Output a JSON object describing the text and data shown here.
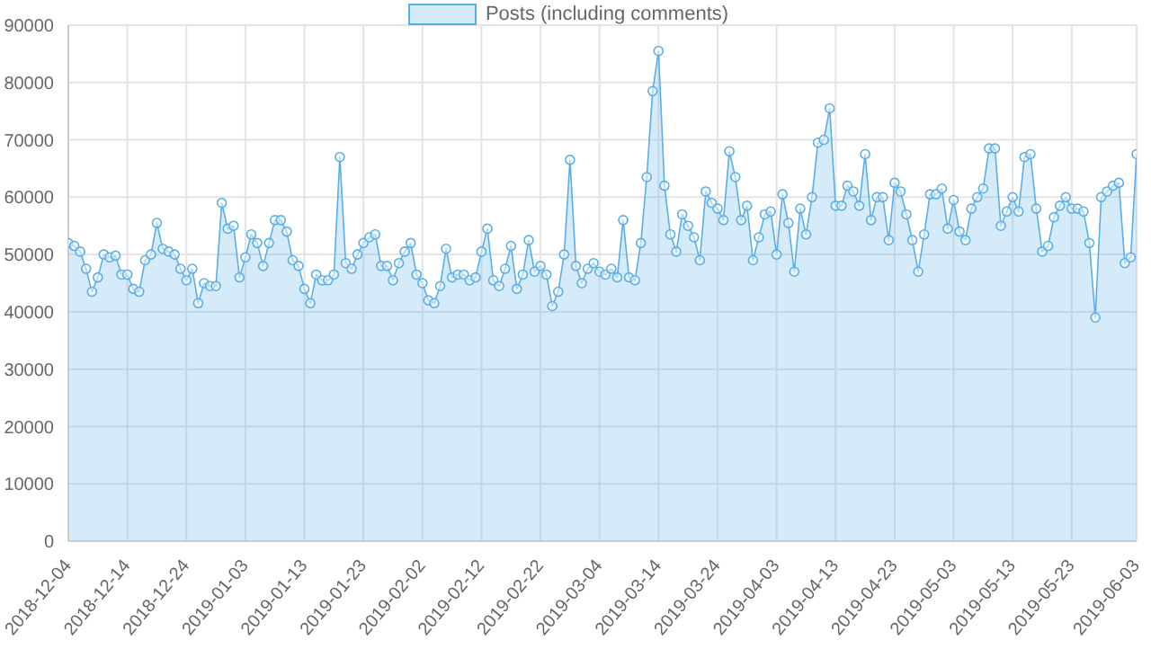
{
  "chart_data": {
    "type": "area",
    "x": [
      "2018-12-04",
      "2018-12-05",
      "2018-12-06",
      "2018-12-07",
      "2018-12-08",
      "2018-12-09",
      "2018-12-10",
      "2018-12-11",
      "2018-12-12",
      "2018-12-13",
      "2018-12-14",
      "2018-12-15",
      "2018-12-16",
      "2018-12-17",
      "2018-12-18",
      "2018-12-19",
      "2018-12-20",
      "2018-12-21",
      "2018-12-22",
      "2018-12-23",
      "2018-12-24",
      "2018-12-25",
      "2018-12-26",
      "2018-12-27",
      "2018-12-28",
      "2018-12-29",
      "2018-12-30",
      "2018-12-31",
      "2019-01-01",
      "2019-01-02",
      "2019-01-03",
      "2019-01-04",
      "2019-01-05",
      "2019-01-06",
      "2019-01-07",
      "2019-01-08",
      "2019-01-09",
      "2019-01-10",
      "2019-01-11",
      "2019-01-12",
      "2019-01-13",
      "2019-01-14",
      "2019-01-15",
      "2019-01-16",
      "2019-01-17",
      "2019-01-18",
      "2019-01-19",
      "2019-01-20",
      "2019-01-21",
      "2019-01-22",
      "2019-01-23",
      "2019-01-24",
      "2019-01-25",
      "2019-01-26",
      "2019-01-27",
      "2019-01-28",
      "2019-01-29",
      "2019-01-30",
      "2019-01-31",
      "2019-02-01",
      "2019-02-02",
      "2019-02-03",
      "2019-02-04",
      "2019-02-05",
      "2019-02-06",
      "2019-02-07",
      "2019-02-08",
      "2019-02-09",
      "2019-02-10",
      "2019-02-11",
      "2019-02-12",
      "2019-02-13",
      "2019-02-14",
      "2019-02-15",
      "2019-02-16",
      "2019-02-17",
      "2019-02-18",
      "2019-02-19",
      "2019-02-20",
      "2019-02-21",
      "2019-02-22",
      "2019-02-23",
      "2019-02-24",
      "2019-02-25",
      "2019-02-26",
      "2019-02-27",
      "2019-02-28",
      "2019-03-01",
      "2019-03-02",
      "2019-03-03",
      "2019-03-04",
      "2019-03-05",
      "2019-03-06",
      "2019-03-07",
      "2019-03-08",
      "2019-03-09",
      "2019-03-10",
      "2019-03-11",
      "2019-03-12",
      "2019-03-13",
      "2019-03-14",
      "2019-03-15",
      "2019-03-16",
      "2019-03-17",
      "2019-03-18",
      "2019-03-19",
      "2019-03-20",
      "2019-03-21",
      "2019-03-22",
      "2019-03-23",
      "2019-03-24",
      "2019-03-25",
      "2019-03-26",
      "2019-03-27",
      "2019-03-28",
      "2019-03-29",
      "2019-03-30",
      "2019-03-31",
      "2019-04-01",
      "2019-04-02",
      "2019-04-03",
      "2019-04-04",
      "2019-04-05",
      "2019-04-06",
      "2019-04-07",
      "2019-04-08",
      "2019-04-09",
      "2019-04-10",
      "2019-04-11",
      "2019-04-12",
      "2019-04-13",
      "2019-04-14",
      "2019-04-15",
      "2019-04-16",
      "2019-04-17",
      "2019-04-18",
      "2019-04-19",
      "2019-04-20",
      "2019-04-21",
      "2019-04-22",
      "2019-04-23",
      "2019-04-24",
      "2019-04-25",
      "2019-04-26",
      "2019-04-27",
      "2019-04-28",
      "2019-04-29",
      "2019-04-30",
      "2019-05-01",
      "2019-05-02",
      "2019-05-03",
      "2019-05-04",
      "2019-05-05",
      "2019-05-06",
      "2019-05-07",
      "2019-05-08",
      "2019-05-09",
      "2019-05-10",
      "2019-05-11",
      "2019-05-12",
      "2019-05-13",
      "2019-05-14",
      "2019-05-15",
      "2019-05-16",
      "2019-05-17",
      "2019-05-18",
      "2019-05-19",
      "2019-05-20",
      "2019-05-21",
      "2019-05-22",
      "2019-05-23",
      "2019-05-24",
      "2019-05-25",
      "2019-05-26",
      "2019-05-27",
      "2019-05-28",
      "2019-05-29",
      "2019-05-30",
      "2019-05-31",
      "2019-06-01",
      "2019-06-02",
      "2019-06-03"
    ],
    "series": [
      {
        "name": "Posts (including comments)",
        "color": "#5aaee8",
        "values": [
          52000,
          51500,
          50500,
          47500,
          43500,
          46000,
          50000,
          49500,
          49800,
          46500,
          46500,
          44000,
          43500,
          49000,
          50000,
          55500,
          51000,
          50500,
          50000,
          47500,
          45500,
          47500,
          41500,
          45000,
          44500,
          44500,
          59000,
          54500,
          55000,
          46000,
          49500,
          53500,
          52000,
          48000,
          52000,
          56000,
          56000,
          54000,
          49000,
          48000,
          44000,
          41500,
          46500,
          45500,
          45500,
          46500,
          67000,
          48500,
          47500,
          50000,
          52000,
          53000,
          53500,
          48000,
          48000,
          45500,
          48500,
          50500,
          52000,
          46500,
          45000,
          42000,
          41500,
          44500,
          51000,
          46000,
          46500,
          46500,
          45500,
          46000,
          50500,
          54500,
          45500,
          44500,
          47500,
          51500,
          44000,
          46500,
          52500,
          47000,
          48000,
          46500,
          41000,
          43500,
          50000,
          66500,
          48000,
          45000,
          47500,
          48500,
          47000,
          46500,
          47500,
          46000,
          56000,
          46000,
          45500,
          52000,
          63500,
          78500,
          85500,
          62000,
          53500,
          50500,
          57000,
          55000,
          53000,
          49000,
          61000,
          59000,
          58000,
          56000,
          68000,
          63500,
          56000,
          58500,
          49000,
          53000,
          57000,
          57500,
          50000,
          60500,
          55500,
          47000,
          58000,
          53500,
          60000,
          69500,
          70000,
          75500,
          58500,
          58500,
          62000,
          61000,
          58500,
          67500,
          56000,
          60000,
          60000,
          52500,
          62500,
          61000,
          57000,
          52500,
          47000,
          53500,
          60500,
          60500,
          61500,
          54500,
          59500,
          54000,
          52500,
          58000,
          60000,
          61500,
          68500,
          68500,
          55000,
          57500,
          60000,
          57500,
          67000,
          67500,
          58000,
          50500,
          51500,
          56500,
          58500,
          60000,
          58000,
          58000,
          57500,
          52000,
          39000,
          60000,
          61000,
          62000,
          62500,
          48500,
          49500,
          67500
        ]
      }
    ],
    "xlim": [
      "2018-12-04",
      "2019-06-03"
    ],
    "xticks": [
      "2018-12-04",
      "2018-12-14",
      "2018-12-24",
      "2019-01-03",
      "2019-01-13",
      "2019-01-23",
      "2019-02-02",
      "2019-02-12",
      "2019-02-22",
      "2019-03-04",
      "2019-03-14",
      "2019-03-24",
      "2019-04-03",
      "2019-04-13",
      "2019-04-23",
      "2019-05-03",
      "2019-05-13",
      "2019-05-23",
      "2019-06-03"
    ],
    "ylim": [
      0,
      90000
    ],
    "yticks": [
      0,
      10000,
      20000,
      30000,
      40000,
      50000,
      60000,
      70000,
      80000,
      90000
    ],
    "grid": true,
    "legend": "top",
    "marker": "circle"
  }
}
